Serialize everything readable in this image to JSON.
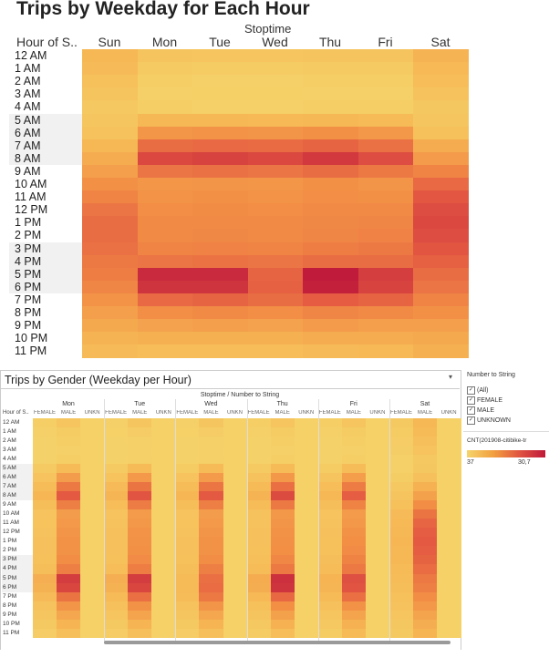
{
  "chart_data": [
    {
      "type": "heatmap",
      "title": "Trips by Weekday for Each Hour",
      "row_dimension": "Hour of S..",
      "column_dimension": "Stoptime",
      "columns": [
        "Sun",
        "Mon",
        "Tue",
        "Wed",
        "Thu",
        "Fri",
        "Sat"
      ],
      "rows": [
        "12 AM",
        "1 AM",
        "2 AM",
        "3 AM",
        "4 AM",
        "5 AM",
        "6 AM",
        "7 AM",
        "8 AM",
        "9 AM",
        "10 AM",
        "11 AM",
        "12 PM",
        "1 PM",
        "2 PM",
        "3 PM",
        "4 PM",
        "5 PM",
        "6 PM",
        "7 PM",
        "8 PM",
        "9 PM",
        "10 PM",
        "11 PM"
      ],
      "values": [
        [
          25,
          14,
          13,
          13,
          14,
          14,
          28
        ],
        [
          22,
          8,
          7,
          7,
          8,
          8,
          24
        ],
        [
          18,
          5,
          4,
          4,
          5,
          5,
          20
        ],
        [
          14,
          4,
          3,
          3,
          4,
          4,
          16
        ],
        [
          10,
          5,
          4,
          4,
          5,
          5,
          11
        ],
        [
          12,
          25,
          25,
          24,
          25,
          23,
          12
        ],
        [
          16,
          45,
          47,
          46,
          48,
          44,
          18
        ],
        [
          25,
          66,
          68,
          67,
          70,
          64,
          32
        ],
        [
          32,
          82,
          84,
          82,
          88,
          80,
          42
        ],
        [
          40,
          62,
          64,
          62,
          66,
          60,
          55
        ],
        [
          48,
          45,
          46,
          45,
          48,
          46,
          68
        ],
        [
          55,
          47,
          48,
          47,
          50,
          48,
          76
        ],
        [
          62,
          50,
          51,
          50,
          52,
          52,
          80
        ],
        [
          66,
          52,
          52,
          52,
          53,
          54,
          82
        ],
        [
          66,
          52,
          53,
          52,
          54,
          56,
          80
        ],
        [
          64,
          55,
          56,
          55,
          58,
          60,
          77
        ],
        [
          60,
          62,
          63,
          62,
          66,
          66,
          72
        ],
        [
          58,
          94,
          94,
          70,
          100,
          86,
          66
        ],
        [
          54,
          90,
          90,
          72,
          98,
          84,
          62
        ],
        [
          47,
          68,
          70,
          66,
          74,
          70,
          55
        ],
        [
          40,
          50,
          52,
          50,
          54,
          52,
          48
        ],
        [
          34,
          38,
          40,
          38,
          42,
          40,
          40
        ],
        [
          28,
          30,
          30,
          30,
          32,
          32,
          34
        ],
        [
          22,
          20,
          20,
          20,
          22,
          24,
          30
        ]
      ],
      "value_scale": {
        "min": 0,
        "max": 100
      },
      "colors": [
        "#f5d36a",
        "#f6b855",
        "#f28e45",
        "#e45a42",
        "#c01b3b"
      ]
    },
    {
      "type": "heatmap",
      "title": "Trips by Gender (Weekday per Hour)",
      "row_dimension": "Hour of S..",
      "column_dimension": "Stoptime / Number to String",
      "days": [
        "Mon",
        "Tue",
        "Wed",
        "Thu",
        "Fri",
        "Sat"
      ],
      "genders": [
        "FEMALE",
        "MALE",
        "UNKN"
      ],
      "rows": [
        "12 AM",
        "1 AM",
        "2 AM",
        "3 AM",
        "4 AM",
        "5 AM",
        "6 AM",
        "7 AM",
        "8 AM",
        "9 AM",
        "10 AM",
        "11 AM",
        "12 PM",
        "1 PM",
        "2 PM",
        "3 PM",
        "4 PM",
        "5 PM",
        "6 PM",
        "7 PM",
        "8 PM",
        "9 PM",
        "10 PM",
        "11 PM"
      ],
      "gender_factors": [
        0.32,
        0.92,
        0.04
      ],
      "legend": {
        "filter_title": "Number to String",
        "filter_items": [
          "(All)",
          "FEMALE",
          "MALE",
          "UNKNOWN"
        ],
        "measure_title": "CNT(201908-citibike-tr",
        "min_label": "37",
        "max_label": "30,7"
      }
    }
  ]
}
